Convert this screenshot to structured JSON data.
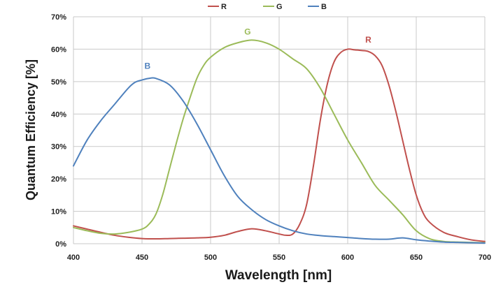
{
  "chart_data": {
    "type": "line",
    "title": "",
    "xlabel": "Wavelength [nm]",
    "ylabel": "Quantum Efficiency [%]",
    "xlim": [
      400,
      700
    ],
    "ylim": [
      0,
      70
    ],
    "grid": true,
    "legend_position": "top-center",
    "x_ticks": [
      400,
      450,
      500,
      550,
      600,
      650,
      700
    ],
    "x_tick_labels": [
      "400",
      "450",
      "500",
      "550",
      "600",
      "650",
      "700"
    ],
    "y_ticks": [
      0,
      10,
      20,
      30,
      40,
      50,
      60,
      70
    ],
    "y_tick_labels": [
      "0%",
      "10%",
      "20%",
      "30%",
      "40%",
      "50%",
      "60%",
      "70%"
    ],
    "series": [
      {
        "name": "R",
        "label": "R",
        "color": "#c0504d",
        "label_at": [
          615,
          62
        ],
        "x": [
          400,
          410,
          420,
          430,
          440,
          450,
          460,
          470,
          480,
          490,
          500,
          510,
          520,
          530,
          540,
          550,
          555,
          560,
          565,
          570,
          575,
          580,
          585,
          590,
          595,
          600,
          605,
          610,
          615,
          620,
          625,
          630,
          635,
          640,
          645,
          650,
          655,
          660,
          670,
          680,
          690,
          700
        ],
        "values": [
          5.5,
          4.5,
          3.5,
          2.6,
          2.0,
          1.6,
          1.5,
          1.6,
          1.7,
          1.8,
          2.0,
          2.6,
          3.8,
          4.6,
          4.0,
          3.0,
          2.6,
          3.0,
          6.0,
          12.0,
          24.0,
          38.0,
          49.0,
          56.0,
          59.0,
          60.0,
          59.8,
          59.6,
          59.3,
          58.0,
          55.0,
          49.0,
          41.0,
          32.0,
          23.0,
          15.0,
          9.5,
          6.5,
          3.5,
          2.2,
          1.2,
          0.7
        ]
      },
      {
        "name": "G",
        "label": "G",
        "color": "#9bbb59",
        "label_at": [
          527,
          64.5
        ],
        "x": [
          400,
          410,
          420,
          430,
          440,
          450,
          455,
          460,
          465,
          470,
          475,
          480,
          485,
          490,
          495,
          500,
          510,
          520,
          530,
          540,
          550,
          560,
          570,
          580,
          590,
          600,
          610,
          620,
          630,
          640,
          650,
          660,
          670,
          680,
          690,
          700
        ],
        "values": [
          5.0,
          4.0,
          3.2,
          3.0,
          3.5,
          4.5,
          6.0,
          9.0,
          15.0,
          23.0,
          31.0,
          38.5,
          45.0,
          51.0,
          55.0,
          57.5,
          60.5,
          62.0,
          62.8,
          62.0,
          60.0,
          57.0,
          54.0,
          48.0,
          40.0,
          32.0,
          25.0,
          18.0,
          13.5,
          9.0,
          4.0,
          1.5,
          0.7,
          0.5,
          0.4,
          0.3
        ]
      },
      {
        "name": "B",
        "label": "B",
        "color": "#4f81bd",
        "label_at": [
          454,
          54
        ],
        "x": [
          400,
          410,
          420,
          430,
          440,
          445,
          450,
          455,
          460,
          470,
          480,
          490,
          500,
          510,
          520,
          530,
          540,
          550,
          560,
          570,
          580,
          590,
          600,
          610,
          620,
          630,
          640,
          650,
          660,
          670,
          680,
          690,
          700
        ],
        "values": [
          24.0,
          32.0,
          38.0,
          43.0,
          48.0,
          49.8,
          50.5,
          51.0,
          51.0,
          49.0,
          44.0,
          37.0,
          29.0,
          21.0,
          14.5,
          10.5,
          7.5,
          5.5,
          4.0,
          3.0,
          2.5,
          2.2,
          1.9,
          1.6,
          1.4,
          1.4,
          1.8,
          1.2,
          0.8,
          0.5,
          0.4,
          0.3,
          0.2
        ]
      }
    ]
  }
}
